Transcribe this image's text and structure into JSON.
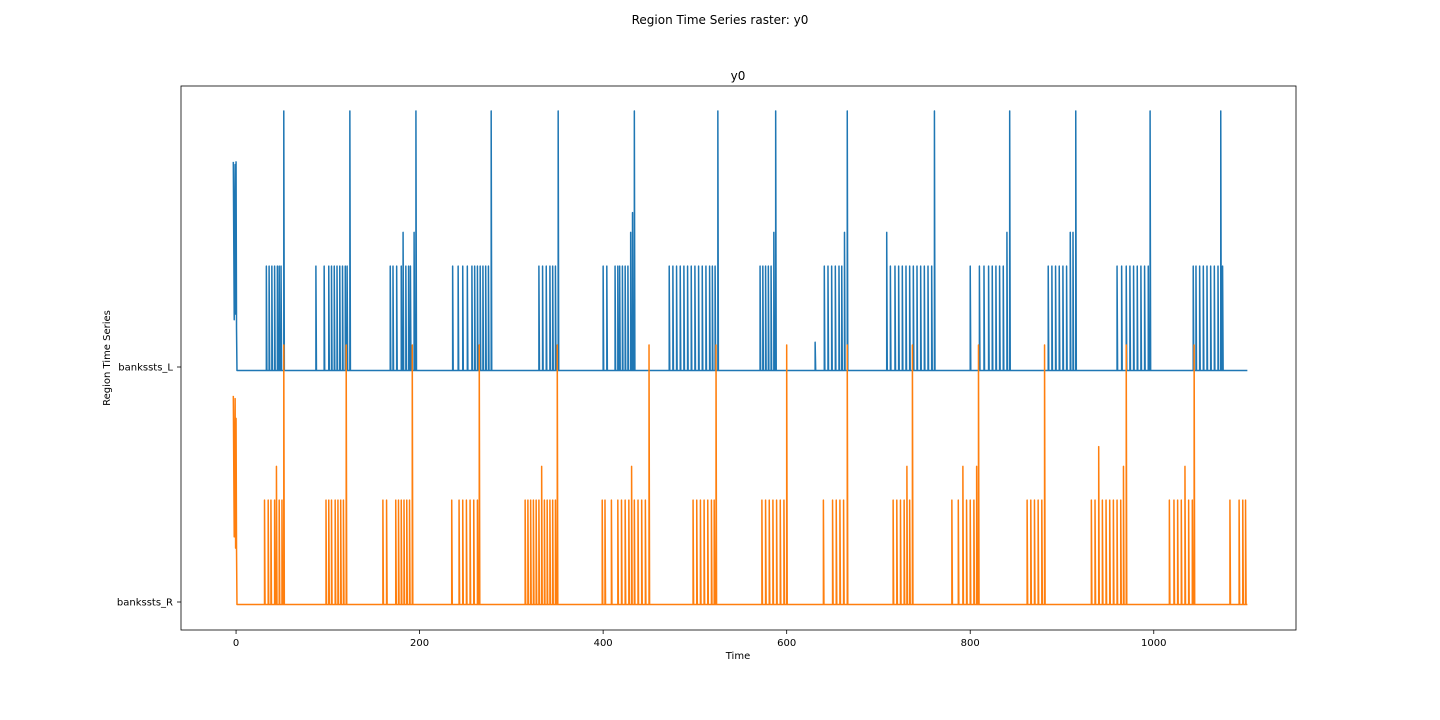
{
  "figure": {
    "suptitle": "Region Time Series raster: y0"
  },
  "chart_data": {
    "type": "line",
    "title": "y0",
    "xlabel": "Time",
    "ylabel": "Region Time Series",
    "xlim": [
      -60,
      1155
    ],
    "xticks": [
      0,
      200,
      400,
      600,
      800,
      1000
    ],
    "grid": false,
    "colors": {
      "banksts_L": "#1f77b4",
      "banksts_R": "#ff7f0e"
    },
    "series": [
      {
        "name": "bankssts_L",
        "baseline": 0,
        "transient": {
          "t": [
            -3,
            -2,
            -1,
            -0.5,
            0,
            0.5,
            1
          ],
          "v": [
            0.74,
            0.18,
            0.73,
            0.2,
            0.74,
            0.15,
            0
          ]
        },
        "spikes": [
          {
            "t": 33,
            "v": 0.37
          },
          {
            "t": 36,
            "v": 0.37
          },
          {
            "t": 39,
            "v": 0.37
          },
          {
            "t": 42,
            "v": 0.37
          },
          {
            "t": 45,
            "v": 0.37
          },
          {
            "t": 47,
            "v": 0.37
          },
          {
            "t": 49,
            "v": 0.37
          },
          {
            "t": 52,
            "v": 0.92
          },
          {
            "t": 87,
            "v": 0.37
          },
          {
            "t": 96,
            "v": 0.37
          },
          {
            "t": 101,
            "v": 0.37
          },
          {
            "t": 104,
            "v": 0.37
          },
          {
            "t": 107,
            "v": 0.37
          },
          {
            "t": 110,
            "v": 0.37
          },
          {
            "t": 113,
            "v": 0.37
          },
          {
            "t": 116,
            "v": 0.37
          },
          {
            "t": 119,
            "v": 0.37
          },
          {
            "t": 121,
            "v": 0.37
          },
          {
            "t": 124,
            "v": 0.92
          },
          {
            "t": 168,
            "v": 0.37
          },
          {
            "t": 171,
            "v": 0.37
          },
          {
            "t": 175,
            "v": 0.37
          },
          {
            "t": 180,
            "v": 0.37
          },
          {
            "t": 182,
            "v": 0.49
          },
          {
            "t": 185,
            "v": 0.37
          },
          {
            "t": 188,
            "v": 0.37
          },
          {
            "t": 190,
            "v": 0.37
          },
          {
            "t": 194,
            "v": 0.49
          },
          {
            "t": 196,
            "v": 0.92
          },
          {
            "t": 236,
            "v": 0.37
          },
          {
            "t": 242,
            "v": 0.37
          },
          {
            "t": 247,
            "v": 0.37
          },
          {
            "t": 252,
            "v": 0.37
          },
          {
            "t": 257,
            "v": 0.37
          },
          {
            "t": 260,
            "v": 0.37
          },
          {
            "t": 263,
            "v": 0.37
          },
          {
            "t": 266,
            "v": 0.37
          },
          {
            "t": 269,
            "v": 0.37
          },
          {
            "t": 272,
            "v": 0.37
          },
          {
            "t": 275,
            "v": 0.37
          },
          {
            "t": 278,
            "v": 0.92
          },
          {
            "t": 330,
            "v": 0.37
          },
          {
            "t": 334,
            "v": 0.37
          },
          {
            "t": 338,
            "v": 0.37
          },
          {
            "t": 342,
            "v": 0.37
          },
          {
            "t": 345,
            "v": 0.37
          },
          {
            "t": 348,
            "v": 0.37
          },
          {
            "t": 351,
            "v": 0.92
          },
          {
            "t": 400,
            "v": 0.37
          },
          {
            "t": 404,
            "v": 0.37
          },
          {
            "t": 413,
            "v": 0.37
          },
          {
            "t": 416,
            "v": 0.37
          },
          {
            "t": 418,
            "v": 0.37
          },
          {
            "t": 421,
            "v": 0.37
          },
          {
            "t": 424,
            "v": 0.37
          },
          {
            "t": 427,
            "v": 0.37
          },
          {
            "t": 430,
            "v": 0.49
          },
          {
            "t": 432,
            "v": 0.56
          },
          {
            "t": 434,
            "v": 0.92
          },
          {
            "t": 472,
            "v": 0.37
          },
          {
            "t": 476,
            "v": 0.37
          },
          {
            "t": 480,
            "v": 0.37
          },
          {
            "t": 484,
            "v": 0.37
          },
          {
            "t": 488,
            "v": 0.37
          },
          {
            "t": 492,
            "v": 0.37
          },
          {
            "t": 496,
            "v": 0.37
          },
          {
            "t": 500,
            "v": 0.37
          },
          {
            "t": 504,
            "v": 0.37
          },
          {
            "t": 508,
            "v": 0.37
          },
          {
            "t": 512,
            "v": 0.37
          },
          {
            "t": 516,
            "v": 0.37
          },
          {
            "t": 519,
            "v": 0.37
          },
          {
            "t": 522,
            "v": 0.37
          },
          {
            "t": 525,
            "v": 0.92
          },
          {
            "t": 571,
            "v": 0.37
          },
          {
            "t": 574,
            "v": 0.37
          },
          {
            "t": 577,
            "v": 0.37
          },
          {
            "t": 580,
            "v": 0.37
          },
          {
            "t": 583,
            "v": 0.37
          },
          {
            "t": 586,
            "v": 0.49
          },
          {
            "t": 588,
            "v": 0.92
          },
          {
            "t": 631,
            "v": 0.1
          },
          {
            "t": 641,
            "v": 0.37
          },
          {
            "t": 645,
            "v": 0.37
          },
          {
            "t": 649,
            "v": 0.37
          },
          {
            "t": 653,
            "v": 0.37
          },
          {
            "t": 657,
            "v": 0.37
          },
          {
            "t": 660,
            "v": 0.37
          },
          {
            "t": 663,
            "v": 0.49
          },
          {
            "t": 666,
            "v": 0.92
          },
          {
            "t": 709,
            "v": 0.49
          },
          {
            "t": 713,
            "v": 0.37
          },
          {
            "t": 718,
            "v": 0.37
          },
          {
            "t": 722,
            "v": 0.37
          },
          {
            "t": 726,
            "v": 0.37
          },
          {
            "t": 730,
            "v": 0.37
          },
          {
            "t": 734,
            "v": 0.37
          },
          {
            "t": 738,
            "v": 0.37
          },
          {
            "t": 742,
            "v": 0.37
          },
          {
            "t": 746,
            "v": 0.37
          },
          {
            "t": 750,
            "v": 0.37
          },
          {
            "t": 754,
            "v": 0.37
          },
          {
            "t": 758,
            "v": 0.37
          },
          {
            "t": 761,
            "v": 0.92
          },
          {
            "t": 800,
            "v": 0.37
          },
          {
            "t": 810,
            "v": 0.37
          },
          {
            "t": 815,
            "v": 0.37
          },
          {
            "t": 820,
            "v": 0.37
          },
          {
            "t": 824,
            "v": 0.37
          },
          {
            "t": 828,
            "v": 0.37
          },
          {
            "t": 832,
            "v": 0.37
          },
          {
            "t": 836,
            "v": 0.37
          },
          {
            "t": 840,
            "v": 0.49
          },
          {
            "t": 843,
            "v": 0.92
          },
          {
            "t": 885,
            "v": 0.37
          },
          {
            "t": 889,
            "v": 0.37
          },
          {
            "t": 893,
            "v": 0.37
          },
          {
            "t": 897,
            "v": 0.37
          },
          {
            "t": 901,
            "v": 0.37
          },
          {
            "t": 905,
            "v": 0.37
          },
          {
            "t": 909,
            "v": 0.49
          },
          {
            "t": 912,
            "v": 0.49
          },
          {
            "t": 915,
            "v": 0.92
          },
          {
            "t": 960,
            "v": 0.37
          },
          {
            "t": 965,
            "v": 0.37
          },
          {
            "t": 970,
            "v": 0.37
          },
          {
            "t": 974,
            "v": 0.37
          },
          {
            "t": 978,
            "v": 0.37
          },
          {
            "t": 982,
            "v": 0.37
          },
          {
            "t": 986,
            "v": 0.37
          },
          {
            "t": 990,
            "v": 0.37
          },
          {
            "t": 994,
            "v": 0.37
          },
          {
            "t": 996,
            "v": 0.92
          },
          {
            "t": 1043,
            "v": 0.37
          },
          {
            "t": 1046,
            "v": 0.37
          },
          {
            "t": 1050,
            "v": 0.37
          },
          {
            "t": 1054,
            "v": 0.37
          },
          {
            "t": 1058,
            "v": 0.37
          },
          {
            "t": 1062,
            "v": 0.37
          },
          {
            "t": 1066,
            "v": 0.37
          },
          {
            "t": 1070,
            "v": 0.37
          },
          {
            "t": 1073,
            "v": 0.92
          },
          {
            "t": 1075,
            "v": 0.37
          }
        ]
      },
      {
        "name": "bankssts_R",
        "baseline": 0,
        "transient": {
          "t": [
            -3,
            -2,
            -1,
            -0.5,
            0,
            0.5,
            1
          ],
          "v": [
            0.74,
            0.24,
            0.73,
            0.2,
            0.66,
            0.2,
            0
          ]
        },
        "spikes": [
          {
            "t": 31,
            "v": 0.37
          },
          {
            "t": 35,
            "v": 0.37
          },
          {
            "t": 38,
            "v": 0.37
          },
          {
            "t": 42,
            "v": 0.37
          },
          {
            "t": 44,
            "v": 0.49
          },
          {
            "t": 47,
            "v": 0.37
          },
          {
            "t": 50,
            "v": 0.37
          },
          {
            "t": 52,
            "v": 0.92
          },
          {
            "t": 98,
            "v": 0.37
          },
          {
            "t": 101,
            "v": 0.37
          },
          {
            "t": 104,
            "v": 0.37
          },
          {
            "t": 108,
            "v": 0.37
          },
          {
            "t": 111,
            "v": 0.37
          },
          {
            "t": 114,
            "v": 0.37
          },
          {
            "t": 117,
            "v": 0.37
          },
          {
            "t": 120,
            "v": 0.92
          },
          {
            "t": 160,
            "v": 0.37
          },
          {
            "t": 164,
            "v": 0.37
          },
          {
            "t": 174,
            "v": 0.37
          },
          {
            "t": 177,
            "v": 0.37
          },
          {
            "t": 180,
            "v": 0.37
          },
          {
            "t": 183,
            "v": 0.37
          },
          {
            "t": 186,
            "v": 0.37
          },
          {
            "t": 189,
            "v": 0.37
          },
          {
            "t": 192,
            "v": 0.92
          },
          {
            "t": 235,
            "v": 0.37
          },
          {
            "t": 243,
            "v": 0.37
          },
          {
            "t": 247,
            "v": 0.37
          },
          {
            "t": 251,
            "v": 0.37
          },
          {
            "t": 255,
            "v": 0.37
          },
          {
            "t": 259,
            "v": 0.37
          },
          {
            "t": 263,
            "v": 0.37
          },
          {
            "t": 265,
            "v": 0.92
          },
          {
            "t": 315,
            "v": 0.37
          },
          {
            "t": 318,
            "v": 0.37
          },
          {
            "t": 321,
            "v": 0.37
          },
          {
            "t": 324,
            "v": 0.37
          },
          {
            "t": 327,
            "v": 0.37
          },
          {
            "t": 330,
            "v": 0.37
          },
          {
            "t": 333,
            "v": 0.49
          },
          {
            "t": 336,
            "v": 0.37
          },
          {
            "t": 339,
            "v": 0.37
          },
          {
            "t": 342,
            "v": 0.37
          },
          {
            "t": 345,
            "v": 0.37
          },
          {
            "t": 348,
            "v": 0.37
          },
          {
            "t": 350,
            "v": 0.92
          },
          {
            "t": 399,
            "v": 0.37
          },
          {
            "t": 402,
            "v": 0.37
          },
          {
            "t": 409,
            "v": 0.37
          },
          {
            "t": 416,
            "v": 0.37
          },
          {
            "t": 420,
            "v": 0.37
          },
          {
            "t": 424,
            "v": 0.37
          },
          {
            "t": 428,
            "v": 0.37
          },
          {
            "t": 431,
            "v": 0.49
          },
          {
            "t": 434,
            "v": 0.37
          },
          {
            "t": 438,
            "v": 0.37
          },
          {
            "t": 442,
            "v": 0.37
          },
          {
            "t": 446,
            "v": 0.37
          },
          {
            "t": 450,
            "v": 0.92
          },
          {
            "t": 498,
            "v": 0.37
          },
          {
            "t": 502,
            "v": 0.37
          },
          {
            "t": 506,
            "v": 0.37
          },
          {
            "t": 510,
            "v": 0.37
          },
          {
            "t": 514,
            "v": 0.37
          },
          {
            "t": 518,
            "v": 0.37
          },
          {
            "t": 521,
            "v": 0.37
          },
          {
            "t": 523,
            "v": 0.92
          },
          {
            "t": 573,
            "v": 0.37
          },
          {
            "t": 577,
            "v": 0.37
          },
          {
            "t": 581,
            "v": 0.37
          },
          {
            "t": 585,
            "v": 0.37
          },
          {
            "t": 589,
            "v": 0.37
          },
          {
            "t": 593,
            "v": 0.37
          },
          {
            "t": 597,
            "v": 0.37
          },
          {
            "t": 600,
            "v": 0.92
          },
          {
            "t": 640,
            "v": 0.37
          },
          {
            "t": 650,
            "v": 0.37
          },
          {
            "t": 654,
            "v": 0.37
          },
          {
            "t": 658,
            "v": 0.37
          },
          {
            "t": 662,
            "v": 0.37
          },
          {
            "t": 666,
            "v": 0.92
          },
          {
            "t": 716,
            "v": 0.37
          },
          {
            "t": 720,
            "v": 0.37
          },
          {
            "t": 724,
            "v": 0.37
          },
          {
            "t": 728,
            "v": 0.37
          },
          {
            "t": 731,
            "v": 0.49
          },
          {
            "t": 734,
            "v": 0.37
          },
          {
            "t": 737,
            "v": 0.92
          },
          {
            "t": 780,
            "v": 0.37
          },
          {
            "t": 787,
            "v": 0.37
          },
          {
            "t": 792,
            "v": 0.49
          },
          {
            "t": 796,
            "v": 0.37
          },
          {
            "t": 800,
            "v": 0.37
          },
          {
            "t": 804,
            "v": 0.37
          },
          {
            "t": 807,
            "v": 0.49
          },
          {
            "t": 809,
            "v": 0.92
          },
          {
            "t": 862,
            "v": 0.37
          },
          {
            "t": 866,
            "v": 0.37
          },
          {
            "t": 870,
            "v": 0.37
          },
          {
            "t": 874,
            "v": 0.37
          },
          {
            "t": 878,
            "v": 0.37
          },
          {
            "t": 881,
            "v": 0.92
          },
          {
            "t": 932,
            "v": 0.37
          },
          {
            "t": 936,
            "v": 0.37
          },
          {
            "t": 940,
            "v": 0.56
          },
          {
            "t": 944,
            "v": 0.37
          },
          {
            "t": 948,
            "v": 0.37
          },
          {
            "t": 952,
            "v": 0.37
          },
          {
            "t": 956,
            "v": 0.37
          },
          {
            "t": 960,
            "v": 0.37
          },
          {
            "t": 964,
            "v": 0.37
          },
          {
            "t": 967,
            "v": 0.49
          },
          {
            "t": 970,
            "v": 0.92
          },
          {
            "t": 1017,
            "v": 0.37
          },
          {
            "t": 1022,
            "v": 0.37
          },
          {
            "t": 1026,
            "v": 0.37
          },
          {
            "t": 1030,
            "v": 0.37
          },
          {
            "t": 1034,
            "v": 0.49
          },
          {
            "t": 1038,
            "v": 0.37
          },
          {
            "t": 1042,
            "v": 0.37
          },
          {
            "t": 1044,
            "v": 0.92
          },
          {
            "t": 1083,
            "v": 0.37
          },
          {
            "t": 1093,
            "v": 0.37
          },
          {
            "t": 1097,
            "v": 0.37
          },
          {
            "t": 1100,
            "v": 0.37
          }
        ]
      }
    ],
    "y_tick_labels": [
      "bankssts_L",
      "bankssts_R"
    ],
    "x_end": 1102
  }
}
